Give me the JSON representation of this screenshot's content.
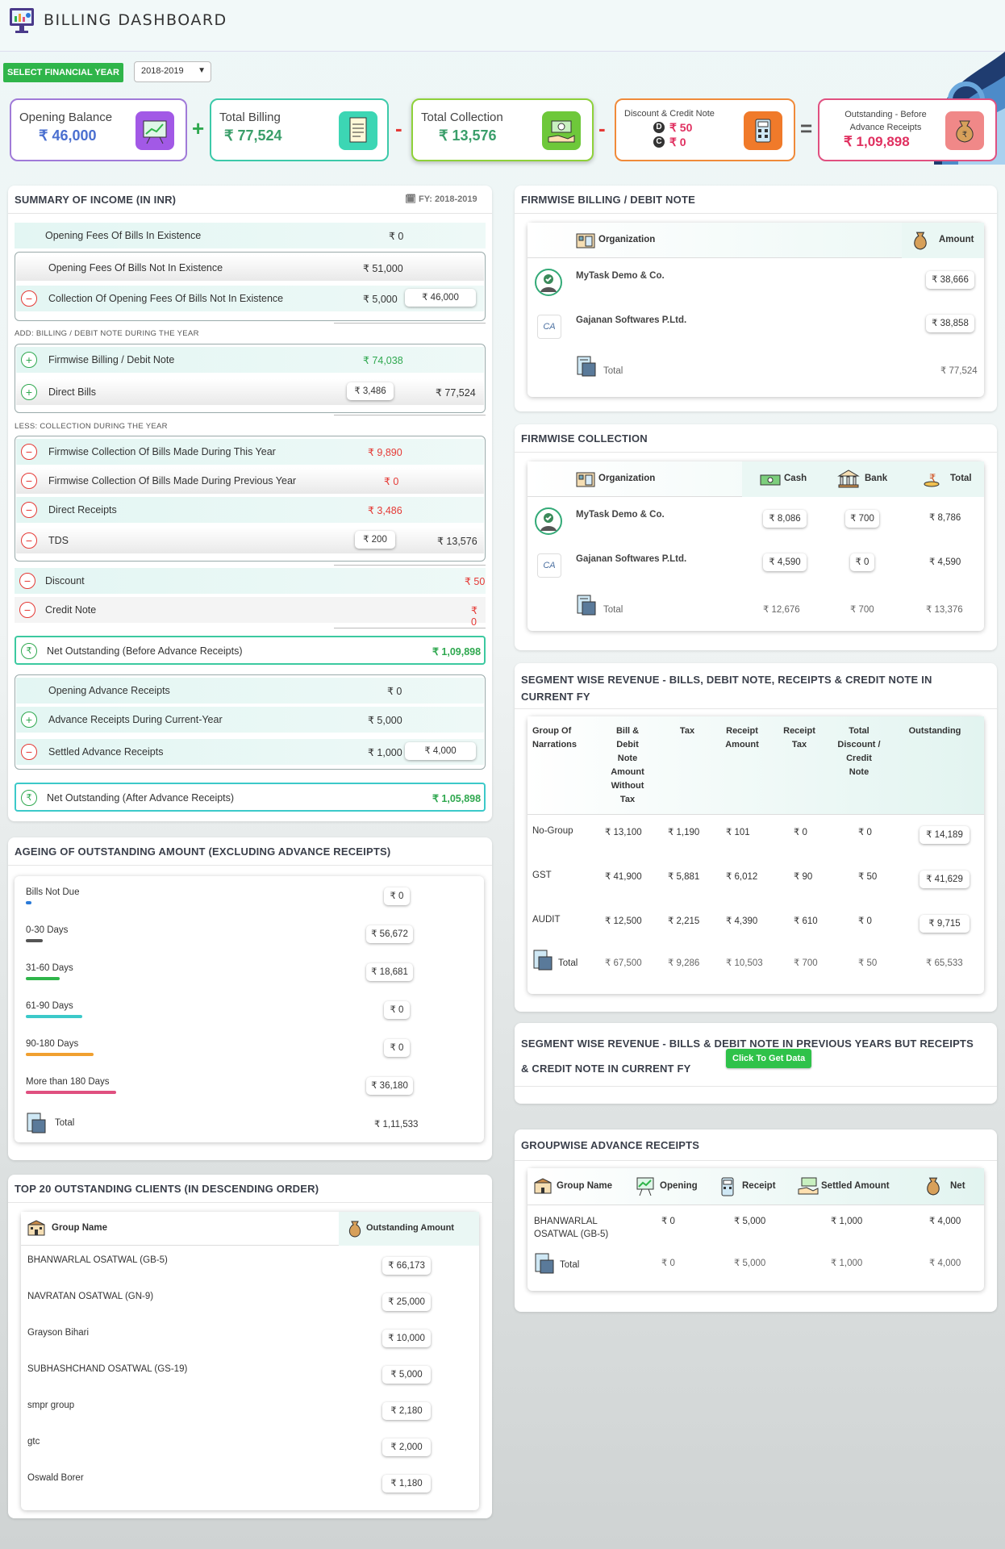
{
  "header": {
    "title": "BILLING DASHBOARD"
  },
  "fy": {
    "label": "SELECT FINANCIAL YEAR",
    "value": "2018-2019"
  },
  "cards": {
    "opening": {
      "label": "Opening Balance",
      "value": "₹ 46,000"
    },
    "billing": {
      "label": "Total Billing",
      "value": "₹ 77,524"
    },
    "collection": {
      "label": "Total Collection",
      "value": "₹ 13,576"
    },
    "discount": {
      "label": "Discount & Credit Note",
      "d_value": "₹ 50",
      "c_value": "₹ 0",
      "d_letter": "D",
      "c_letter": "C"
    },
    "outstanding": {
      "label": "Outstanding - Before Advance Receipts",
      "value": "₹ 1,09,898"
    },
    "ops": {
      "plus": "+",
      "minus1": "-",
      "minus2": "-",
      "equals": "="
    }
  },
  "summary": {
    "title": "SUMMARY OF INCOME (IN INR)",
    "fy": "FY: 2018-2019",
    "opening_exist": {
      "label": "Opening Fees Of Bills In Existence",
      "value": "₹ 0"
    },
    "opening_not_exist": {
      "label": "Opening Fees Of Bills Not In Existence",
      "value": "₹ 51,000"
    },
    "collection_opening": {
      "label": "Collection Of Opening Fees Of Bills Not In Existence",
      "value": "₹ 5,000",
      "net": "₹ 46,000"
    },
    "add_label": "ADD: BILLING / DEBIT NOTE DURING THE YEAR",
    "firmwise_billing": {
      "label": "Firmwise Billing / Debit Note",
      "value": "₹ 74,038"
    },
    "direct_bills": {
      "label": "Direct Bills",
      "value": "₹ 3,486",
      "total": "₹ 77,524"
    },
    "less_label": "LESS: COLLECTION DURING THE YEAR",
    "col_this": {
      "label": "Firmwise Collection Of Bills Made During This Year",
      "value": "₹ 9,890"
    },
    "col_prev": {
      "label": "Firmwise Collection Of Bills Made During Previous Year",
      "value": "₹ 0"
    },
    "direct_receipts": {
      "label": "Direct Receipts",
      "value": "₹ 3,486"
    },
    "tds": {
      "label": "TDS",
      "value": "₹ 200",
      "total": "₹ 13,576"
    },
    "discount": {
      "label": "Discount",
      "value": "₹ 50"
    },
    "credit_note": {
      "label": "Credit Note",
      "value": "₹ 0"
    },
    "net_before": {
      "label": "Net Outstanding (Before Advance Receipts)",
      "value": "₹ 1,09,898"
    },
    "opening_adv": {
      "label": "Opening Advance Receipts",
      "value": "₹ 0"
    },
    "adv_current": {
      "label": "Advance Receipts During Current-Year",
      "value": "₹ 5,000"
    },
    "settled_adv": {
      "label": "Settled Advance Receipts",
      "value": "₹ 1,000",
      "net": "₹ 4,000"
    },
    "net_after": {
      "label": "Net Outstanding (After Advance Receipts)",
      "value": "₹ 1,05,898"
    },
    "signs": {
      "minus": "−",
      "plus": "+",
      "rupee": "₹"
    }
  },
  "ageing": {
    "title": "AGEING OF OUTSTANDING AMOUNT (EXCLUDING ADVANCE RECEIPTS)",
    "rows": [
      {
        "label": "Bills Not Due",
        "value": "₹ 0",
        "color": "#2a7ad8",
        "fill": 0.05
      },
      {
        "label": "0-30 Days",
        "value": "₹ 56,672",
        "color": "#555555",
        "fill": 0.15
      },
      {
        "label": "31-60 Days",
        "value": "₹ 18,681",
        "color": "#2fb54a",
        "fill": 0.3
      },
      {
        "label": "61-90 Days",
        "value": "₹ 0",
        "color": "#3cc9c9",
        "fill": 0.5
      },
      {
        "label": "90-180 Days",
        "value": "₹ 0",
        "color": "#f0a030",
        "fill": 0.6
      },
      {
        "label": "More than 180 Days",
        "value": "₹ 36,180",
        "color": "#e05080",
        "fill": 0.8
      }
    ],
    "total_label": "Total",
    "total": "₹ 1,11,533"
  },
  "top20": {
    "title": "TOP 20 OUTSTANDING CLIENTS (IN DESCENDING ORDER)",
    "col_group": "Group Name",
    "col_amount": "Outstanding Amount",
    "rows": [
      {
        "name": "BHANWARLAL OSATWAL (GB-5)",
        "amount": "₹ 66,173"
      },
      {
        "name": "NAVRATAN OSATWAL (GN-9)",
        "amount": "₹ 25,000"
      },
      {
        "name": "Grayson Bihari",
        "amount": "₹ 10,000"
      },
      {
        "name": "SUBHASHCHAND OSATWAL (GS-19)",
        "amount": "₹ 5,000"
      },
      {
        "name": "smpr group",
        "amount": "₹ 2,180"
      },
      {
        "name": "gtc",
        "amount": "₹ 2,000"
      },
      {
        "name": "Oswald Borer",
        "amount": "₹ 1,180"
      }
    ]
  },
  "firm_billing": {
    "title": "FIRMWISE BILLING / DEBIT NOTE",
    "col_org": "Organization",
    "col_amount": "Amount",
    "rows": [
      {
        "org": "MyTask Demo & Co.",
        "amount": "₹ 38,666"
      },
      {
        "org": "Gajanan Softwares P.Ltd.",
        "amount": "₹ 38,858"
      }
    ],
    "total_label": "Total",
    "total": "₹ 77,524"
  },
  "firm_collection": {
    "title": "FIRMWISE COLLECTION",
    "col_org": "Organization",
    "col_cash": "Cash",
    "col_bank": "Bank",
    "col_total": "Total",
    "rows": [
      {
        "org": "MyTask Demo & Co.",
        "cash": "₹ 8,086",
        "bank": "₹ 700",
        "total": "₹ 8,786"
      },
      {
        "org": "Gajanan Softwares P.Ltd.",
        "cash": "₹ 4,590",
        "bank": "₹ 0",
        "total": "₹ 4,590"
      }
    ],
    "total_label": "Total",
    "total_cash": "₹ 12,676",
    "total_bank": "₹ 700",
    "total_total": "₹ 13,376"
  },
  "segment": {
    "title1": "SEGMENT WISE REVENUE - BILLS, DEBIT NOTE, RECEIPTS & CREDIT NOTE IN",
    "title2": "CURRENT FY",
    "cols": {
      "group": [
        "Group Of",
        "Narrations"
      ],
      "bill": [
        "Bill &",
        "Debit",
        "Note",
        "Amount",
        "Without",
        "Tax"
      ],
      "tax": [
        "Tax"
      ],
      "receipt": [
        "Receipt",
        "Amount"
      ],
      "rtax": [
        "Receipt",
        "Tax"
      ],
      "disc": [
        "Total",
        "Discount /",
        "Credit",
        "Note"
      ],
      "out": [
        "Outstanding"
      ]
    },
    "rows": [
      {
        "group": "No-Group",
        "bill": "₹ 13,100",
        "tax": "₹ 1,190",
        "receipt": "₹ 101",
        "rtax": "₹ 0",
        "disc": "₹ 0",
        "out": "₹ 14,189"
      },
      {
        "group": "GST",
        "bill": "₹ 41,900",
        "tax": "₹ 5,881",
        "receipt": "₹ 6,012",
        "rtax": "₹ 90",
        "disc": "₹ 50",
        "out": "₹ 41,629"
      },
      {
        "group": "AUDIT",
        "bill": "₹ 12,500",
        "tax": "₹ 2,215",
        "receipt": "₹ 4,390",
        "rtax": "₹ 610",
        "disc": "₹ 0",
        "out": "₹ 9,715"
      }
    ],
    "total": {
      "group": "Total",
      "bill": "₹ 67,500",
      "tax": "₹ 9,286",
      "receipt": "₹ 10,503",
      "rtax": "₹ 700",
      "disc": "₹ 50",
      "out": "₹ 65,533"
    }
  },
  "segment_prev": {
    "title1": "SEGMENT WISE REVENUE - BILLS & DEBIT NOTE IN PREVIOUS YEARS BUT RECEIPTS",
    "title2": "& CREDIT NOTE IN CURRENT FY",
    "button": "Click To Get Data"
  },
  "group_adv": {
    "title": "GROUPWISE ADVANCE RECEIPTS",
    "col_group": "Group Name",
    "col_opening": "Opening",
    "col_receipt": "Receipt",
    "col_settled": "Settled Amount",
    "col_net": "Net",
    "row": {
      "group1": "BHANWARLAL",
      "group2": "OSATWAL (GB-5)",
      "opening": "₹ 0",
      "receipt": "₹ 5,000",
      "settled": "₹ 1,000",
      "net": "₹ 4,000"
    },
    "total": {
      "label": "Total",
      "opening": "₹ 0",
      "receipt": "₹ 5,000",
      "settled": "₹ 1,000",
      "net": "₹ 4,000"
    }
  }
}
